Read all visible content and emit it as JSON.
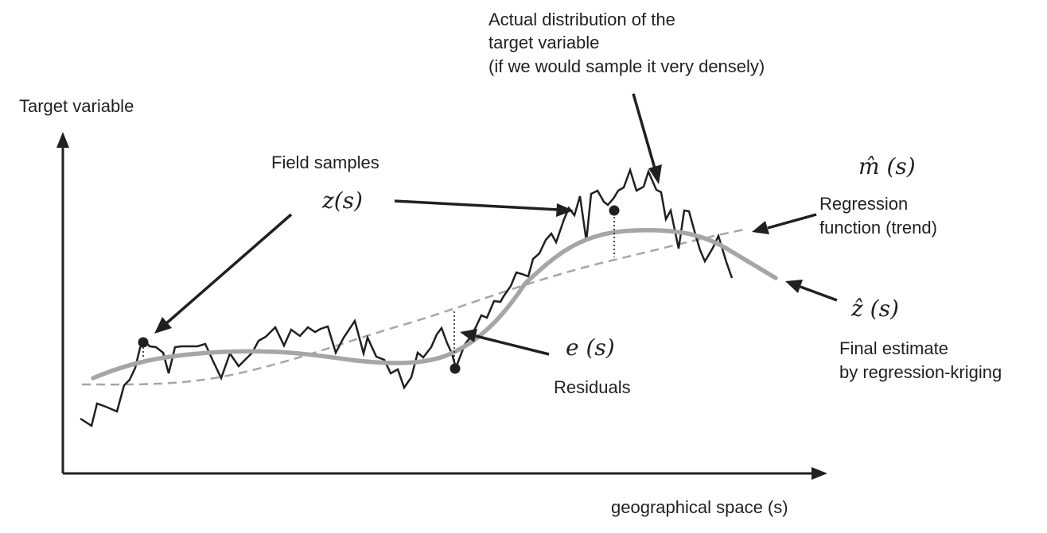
{
  "labels": {
    "y_axis": "Target variable",
    "x_axis": "geographical space (s)",
    "field_samples": "Field samples",
    "z_s": "z(s)",
    "actual_line1": "Actual distribution of the",
    "actual_line2": "target variable",
    "actual_line3": "(if we would sample it very densely)",
    "m_hat": "m̂ (s)",
    "regression_line1": "Regression",
    "regression_line2": "function (trend)",
    "z_hat": "ẑ (s)",
    "final_line1": "Final estimate",
    "final_line2": "by regression-kriging",
    "e_s": "e (s)",
    "residuals": "Residuals"
  },
  "colors": {
    "ink": "#231f20",
    "estimate_curve": "#a6a6a6",
    "trend_curve": "#a6a6a6",
    "background": "#ffffff"
  }
}
